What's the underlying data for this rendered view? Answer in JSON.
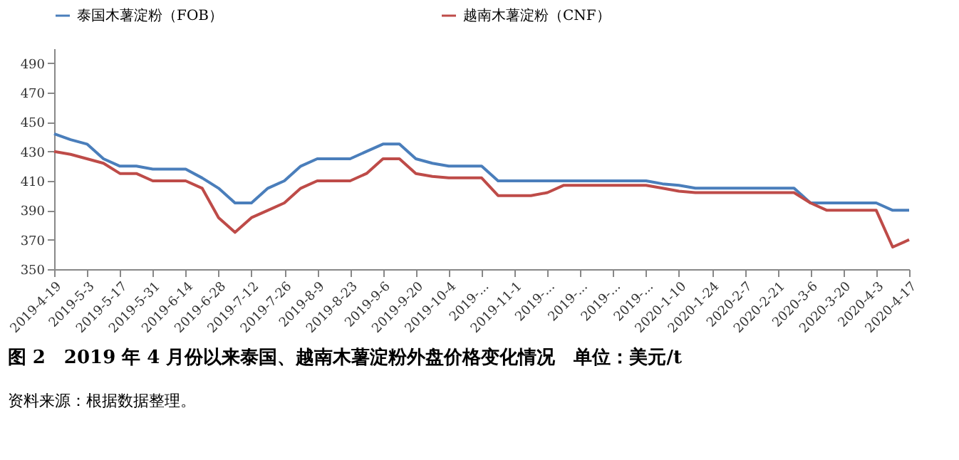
{
  "chart_data": {
    "type": "line",
    "title": "图 2　2019 年 4 月份以来泰国、越南木薯淀粉外盘价格变化情况　单位：美元/t",
    "annotations": [
      "资料来源：根据数据整理。"
    ],
    "categories": [
      "2019-4-19",
      null,
      "2019-5-3",
      null,
      "2019-5-17",
      null,
      "2019-5-31",
      null,
      "2019-6-14",
      null,
      "2019-6-28",
      null,
      "2019-7-12",
      null,
      "2019-7-26",
      null,
      "2019-8-9",
      null,
      "2019-8-23",
      null,
      "2019-9-6",
      null,
      "2019-9-20",
      null,
      "2019-10-4",
      null,
      "2019-...",
      null,
      "2019-11-1",
      null,
      "2019-...",
      null,
      "2019-...",
      null,
      "2019-...",
      null,
      "2019-...",
      null,
      "2020-1-10",
      null,
      "2020-1-24",
      null,
      "2020-2-7",
      null,
      "2020-2-21",
      null,
      "2020-3-6",
      null,
      "2020-3-20",
      null,
      "2020-4-3",
      null,
      "2020-4-17"
    ],
    "series": [
      {
        "name": "泰国木薯淀粉（FOB）",
        "color": "#4a7ebb",
        "values": [
          442,
          438,
          435,
          425,
          420,
          420,
          418,
          418,
          418,
          412,
          405,
          395,
          395,
          405,
          410,
          420,
          425,
          425,
          425,
          430,
          435,
          435,
          425,
          422,
          420,
          420,
          420,
          410,
          410,
          410,
          410,
          410,
          410,
          410,
          410,
          410,
          410,
          408,
          407,
          405,
          405,
          405,
          405,
          405,
          405,
          405,
          395,
          395,
          395,
          395,
          395,
          390,
          390
        ]
      },
      {
        "name": "越南木薯淀粉（CNF）",
        "color": "#be4b48",
        "values": [
          430,
          428,
          425,
          422,
          415,
          415,
          410,
          410,
          410,
          405,
          385,
          375,
          385,
          390,
          395,
          405,
          410,
          410,
          410,
          415,
          425,
          425,
          415,
          413,
          412,
          412,
          412,
          400,
          400,
          400,
          402,
          407,
          407,
          407,
          407,
          407,
          407,
          405,
          403,
          402,
          402,
          402,
          402,
          402,
          402,
          402,
          395,
          390,
          390,
          390,
          390,
          365,
          370
        ]
      }
    ],
    "ylim": [
      350,
      500
    ],
    "yticks": [
      350,
      370,
      390,
      410,
      430,
      450,
      470,
      490
    ],
    "grid": false,
    "legend": "top",
    "marker": "none",
    "line_style": "solid"
  }
}
